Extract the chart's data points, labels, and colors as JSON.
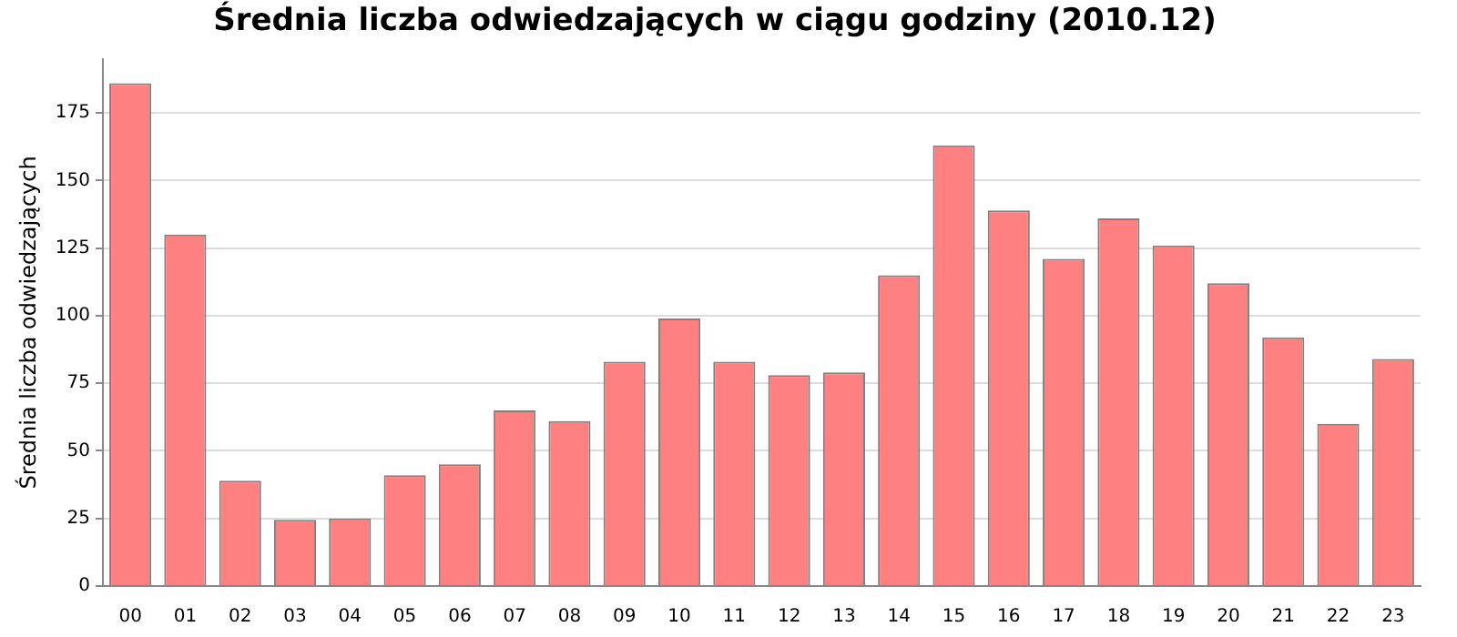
{
  "chart_data": {
    "type": "bar",
    "title": "Średnia liczba odwiedzających w ciągu godziny (2010.12)",
    "ylabel": "Średnia liczba odwiedzających",
    "categories": [
      "00",
      "01",
      "02",
      "03",
      "04",
      "05",
      "06",
      "07",
      "08",
      "09",
      "10",
      "11",
      "12",
      "13",
      "14",
      "15",
      "16",
      "17",
      "18",
      "19",
      "20",
      "21",
      "22",
      "23"
    ],
    "values": [
      186,
      130,
      39,
      24.5,
      25,
      41,
      45,
      65,
      61,
      83,
      99,
      83,
      78,
      79,
      115,
      163,
      139,
      121,
      136,
      126,
      112,
      92,
      60,
      84
    ],
    "color": "#ff8080",
    "ylim": [
      0,
      195
    ],
    "yticks": [
      0,
      25,
      50,
      75,
      100,
      125,
      150,
      175
    ],
    "grid": "y"
  }
}
